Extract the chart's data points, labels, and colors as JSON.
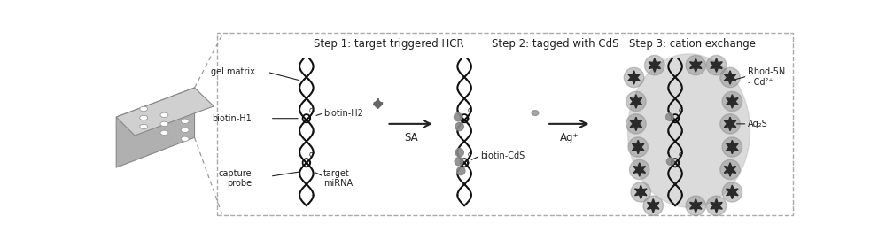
{
  "step1_label": "Step 1: target triggered HCR",
  "step2_label": "Step 2: tagged with CdS",
  "step3_label": "Step 3: cation exchange",
  "arrow_label1": "SA",
  "arrow_label2": "Ag⁺",
  "labels_step1": [
    "gel matrix",
    "biotin-H1",
    "biotin-H2",
    "capture\nprobe",
    "target\nmiRNA"
  ],
  "labels_step2": [
    "biotin-CdS"
  ],
  "labels_step3_1": "Rhod-5N",
  "labels_step3_2": "- Cd²⁺",
  "labels_step3_3": "Ag₂S",
  "bg_color": "#ffffff",
  "border_color": "#aaaaaa",
  "text_color": "#222222",
  "dna_color": "#111111",
  "arrow_color": "#222222",
  "gel_bg": "#e0e0e0",
  "cds_color": "#888888",
  "ag2s_color": "#2a2a2a",
  "halo_color": "#c8c8c8",
  "plate_color": "#bbbbbb",
  "plate_highlight": "#d8d8d8",
  "plus_color": "#666666",
  "loop_color": "#111111"
}
